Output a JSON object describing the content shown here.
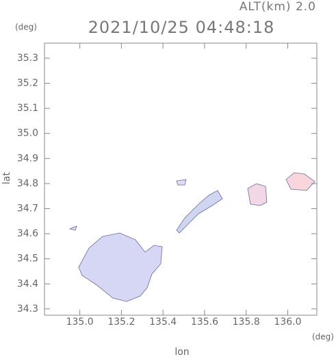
{
  "chart_data": {
    "type": "map",
    "title": "2021/10/25 04:48:18",
    "subtitle": "ALT(km) 2.0",
    "y_unit": "(deg)",
    "x_unit": "(deg)",
    "xlabel": "lon",
    "ylabel": "lat",
    "xlim": [
      134.83,
      136.14
    ],
    "ylim": [
      34.275,
      35.36
    ],
    "xticks": [
      {
        "value": 135.0,
        "label": "135.0"
      },
      135.2,
      135.4,
      135.6,
      135.8,
      {
        "value": 136.0,
        "label": "136.0"
      }
    ],
    "yticks": [
      34.3,
      34.4,
      34.5,
      34.6,
      34.7,
      34.8,
      34.9,
      {
        "value": 35.0,
        "label": "35.0"
      },
      35.1,
      35.2,
      35.3
    ]
  }
}
